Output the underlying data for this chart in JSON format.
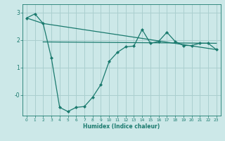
{
  "xlabel": "Humidex (Indice chaleur)",
  "background_color": "#cce8e8",
  "line_color": "#1a7a6e",
  "grid_color": "#aacfcf",
  "xlim": [
    -0.5,
    23.5
  ],
  "ylim": [
    -0.75,
    3.3
  ],
  "xticks": [
    0,
    1,
    2,
    3,
    4,
    5,
    6,
    7,
    8,
    9,
    10,
    11,
    12,
    13,
    14,
    15,
    16,
    17,
    18,
    19,
    20,
    21,
    22,
    23
  ],
  "yticks": [
    0,
    1,
    2,
    3
  ],
  "ytick_labels": [
    "-0",
    "1",
    "2",
    "3"
  ],
  "series1_x": [
    0,
    1,
    2,
    3,
    4,
    5,
    6,
    7,
    8,
    9,
    10,
    11,
    12,
    13,
    14,
    15,
    16,
    17,
    18,
    19,
    20,
    21,
    22,
    23
  ],
  "series1_y": [
    2.8,
    2.95,
    2.6,
    1.35,
    -0.45,
    -0.6,
    -0.45,
    -0.42,
    -0.08,
    0.38,
    1.22,
    1.55,
    1.75,
    1.78,
    2.38,
    1.88,
    1.95,
    2.28,
    1.95,
    1.8,
    1.8,
    1.88,
    1.88,
    1.65
  ],
  "series2_x": [
    0,
    2,
    23
  ],
  "series2_y": [
    2.8,
    2.6,
    1.65
  ],
  "series3_x": [
    2,
    23
  ],
  "series3_y": [
    1.93,
    1.88
  ],
  "marker_size": 2.5,
  "line_width": 0.9
}
